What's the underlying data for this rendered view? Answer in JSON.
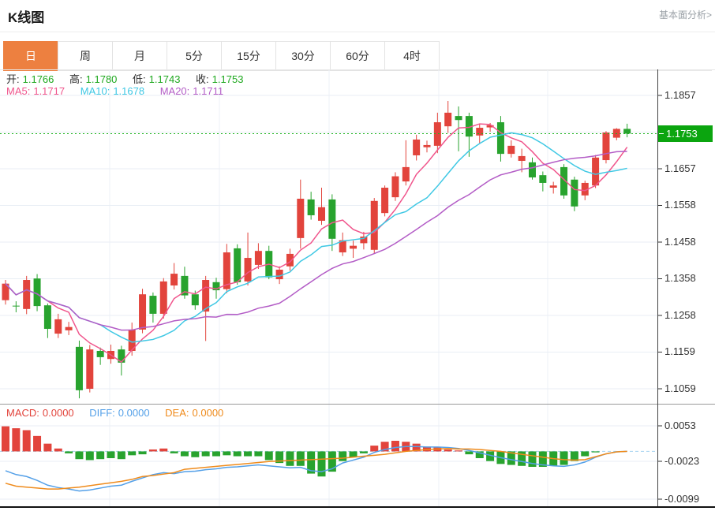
{
  "header": {
    "title": "K线图",
    "link": "基本面分析>"
  },
  "tabs": {
    "active": 0,
    "items": [
      "日",
      "周",
      "月",
      "5分",
      "15分",
      "30分",
      "60分",
      "4时"
    ]
  },
  "quote": {
    "open_label": "开:",
    "open": "1.1766",
    "high_label": "高:",
    "high": "1.1780",
    "low_label": "低:",
    "low": "1.1743",
    "close_label": "收:",
    "close": "1.1753"
  },
  "ma_header": {
    "ma5_label": "MA5:",
    "ma5": "1.1717",
    "ma10_label": "MA10:",
    "ma10": "1.1678",
    "ma20_label": "MA20:",
    "ma20": "1.1711"
  },
  "macd_header": {
    "macd_label": "MACD:",
    "macd": "0.0000",
    "diff_label": "DIFF:",
    "diff": "0.0000",
    "dea_label": "DEA:",
    "dea": "0.0000"
  },
  "price_axis": {
    "ticks": [
      "1.1857",
      "1.1657",
      "1.1558",
      "1.1458",
      "1.1358",
      "1.1258",
      "1.1159",
      "1.1059"
    ],
    "current": "1.1753"
  },
  "macd_axis": {
    "ticks": [
      "0.0053",
      "-0.0023",
      "-0.0099"
    ]
  },
  "chart_data": {
    "type": "candlestick",
    "timeframe": "日",
    "title": "K线图",
    "legend_position": "top-left",
    "grid": true,
    "y_axis_range": [
      1.1059,
      1.1857
    ],
    "current_price": 1.1753,
    "price_ticks": [
      1.1857,
      1.1753,
      1.1657,
      1.1558,
      1.1458,
      1.1358,
      1.1258,
      1.1159,
      1.1059
    ],
    "ma_periods": [
      5,
      10,
      20
    ],
    "ma_values_last": {
      "MA5": 1.1717,
      "MA10": 1.1678,
      "MA20": 1.1711
    },
    "ohlc": [
      [
        1.13,
        1.1355,
        1.1288,
        1.1345
      ],
      [
        1.1285,
        1.1297,
        1.1267,
        1.1284
      ],
      [
        1.1276,
        1.1366,
        1.1262,
        1.1355
      ],
      [
        1.1359,
        1.1371,
        1.127,
        1.1284
      ],
      [
        1.1286,
        1.1291,
        1.1197,
        1.1222
      ],
      [
        1.1209,
        1.1263,
        1.1197,
        1.1248
      ],
      [
        1.1218,
        1.1241,
        1.1205,
        1.1227
      ],
      [
        1.1173,
        1.119,
        1.1033,
        1.1055
      ],
      [
        1.1059,
        1.1178,
        1.1049,
        1.1166
      ],
      [
        1.1162,
        1.1171,
        1.1124,
        1.1145
      ],
      [
        1.114,
        1.1179,
        1.1127,
        1.1162
      ],
      [
        1.1166,
        1.1176,
        1.1095,
        1.113
      ],
      [
        1.1162,
        1.1239,
        1.1149,
        1.122
      ],
      [
        1.122,
        1.1331,
        1.121,
        1.1316
      ],
      [
        1.1312,
        1.1321,
        1.1239,
        1.1263
      ],
      [
        1.1263,
        1.136,
        1.125,
        1.1351
      ],
      [
        1.134,
        1.1401,
        1.1329,
        1.1372
      ],
      [
        1.1366,
        1.1391,
        1.1304,
        1.1313
      ],
      [
        1.1316,
        1.1326,
        1.1274,
        1.1286
      ],
      [
        1.1269,
        1.1366,
        1.1189,
        1.1355
      ],
      [
        1.1349,
        1.1361,
        1.1304,
        1.1327
      ],
      [
        1.133,
        1.1453,
        1.1319,
        1.143
      ],
      [
        1.1441,
        1.1452,
        1.1342,
        1.1349
      ],
      [
        1.1351,
        1.1484,
        1.134,
        1.1415
      ],
      [
        1.1396,
        1.1455,
        1.1385,
        1.1434
      ],
      [
        1.1434,
        1.1448,
        1.1357,
        1.1362
      ],
      [
        1.1357,
        1.1392,
        1.1344,
        1.1383
      ],
      [
        1.1392,
        1.144,
        1.138,
        1.1426
      ],
      [
        1.1469,
        1.1628,
        1.144,
        1.1576
      ],
      [
        1.1574,
        1.1595,
        1.1519,
        1.1531
      ],
      [
        1.1516,
        1.1606,
        1.1505,
        1.1553
      ],
      [
        1.1574,
        1.1588,
        1.1434,
        1.1467
      ],
      [
        1.143,
        1.1484,
        1.142,
        1.1463
      ],
      [
        1.144,
        1.1462,
        1.1415,
        1.1448
      ],
      [
        1.1455,
        1.1486,
        1.1438,
        1.1473
      ],
      [
        1.1437,
        1.1578,
        1.1428,
        1.157
      ],
      [
        1.1537,
        1.1612,
        1.1528,
        1.1606
      ],
      [
        1.158,
        1.1648,
        1.157,
        1.1637
      ],
      [
        1.1623,
        1.1735,
        1.1612,
        1.1662
      ],
      [
        1.1694,
        1.175,
        1.168,
        1.1737
      ],
      [
        1.1716,
        1.1734,
        1.1702,
        1.1722
      ],
      [
        1.172,
        1.181,
        1.17,
        1.1784
      ],
      [
        1.1773,
        1.1842,
        1.1755,
        1.181
      ],
      [
        1.1801,
        1.1827,
        1.1705,
        1.179
      ],
      [
        1.1801,
        1.181,
        1.169,
        1.1745
      ],
      [
        1.1748,
        1.178,
        1.1726,
        1.1769
      ],
      [
        1.177,
        1.1782,
        1.1758,
        1.1776
      ],
      [
        1.1784,
        1.1801,
        1.1677,
        1.1698
      ],
      [
        1.1698,
        1.1735,
        1.1688,
        1.172
      ],
      [
        1.1679,
        1.1712,
        1.1648,
        1.1692
      ],
      [
        1.1675,
        1.1688,
        1.1628,
        1.1634
      ],
      [
        1.164,
        1.165,
        1.1596,
        1.1619
      ],
      [
        1.1606,
        1.1622,
        1.159,
        1.1612
      ],
      [
        1.1662,
        1.167,
        1.1576,
        1.1585
      ],
      [
        1.1628,
        1.1636,
        1.1542,
        1.1555
      ],
      [
        1.1585,
        1.1625,
        1.1572,
        1.1619
      ],
      [
        1.1612,
        1.1695,
        1.1605,
        1.1688
      ],
      [
        1.1681,
        1.176,
        1.1672,
        1.1756
      ],
      [
        1.1742,
        1.1768,
        1.1735,
        1.1766
      ],
      [
        1.1766,
        1.178,
        1.1743,
        1.1753
      ]
    ],
    "indicator": {
      "type": "MACD",
      "scale": 0.0001,
      "hist_formula": "2*(diff-dea)",
      "y_ticks": [
        0.0053,
        -0.0023,
        -0.0099
      ],
      "diff": [
        -40,
        -48,
        -52,
        -60,
        -70,
        -75,
        -78,
        -82,
        -80,
        -76,
        -72,
        -70,
        -62,
        -55,
        -48,
        -44,
        -46,
        -42,
        -41,
        -38,
        -36,
        -33,
        -32,
        -30,
        -28,
        -30,
        -32,
        -34,
        -33,
        -40,
        -42,
        -36,
        -24,
        -18,
        -12,
        -2,
        4,
        8,
        10,
        10,
        9,
        9,
        8,
        6,
        2,
        -3,
        -8,
        -13,
        -17,
        -21,
        -25,
        -28,
        -30,
        -31,
        -28,
        -22,
        -12,
        -5,
        -1,
        0
      ],
      "dea": [
        -66,
        -72,
        -74,
        -76,
        -78,
        -78,
        -76,
        -74,
        -71,
        -68,
        -65,
        -62,
        -58,
        -52,
        -50,
        -47,
        -44,
        -37,
        -35,
        -33,
        -31,
        -29,
        -27,
        -25,
        -23,
        -21,
        -20,
        -19,
        -18,
        -17,
        -16,
        -15,
        -14,
        -12,
        -10,
        -8,
        -6,
        -3,
        0,
        2,
        4,
        5,
        6,
        5,
        5,
        4,
        2,
        0,
        -3,
        -6,
        -9,
        -12,
        -15,
        -17,
        -18,
        -17,
        -11,
        -5,
        -1,
        0
      ]
    },
    "colors": {
      "up": "#e2443c",
      "down": "#28a32e",
      "ma5": "#f0558c",
      "ma10": "#3fc8e4",
      "ma20": "#b35cc6",
      "diff": "#54a0e8",
      "dea": "#ef8b1c",
      "current_price_tag": "#0ba50f",
      "active_tab": "#ed8040"
    }
  }
}
